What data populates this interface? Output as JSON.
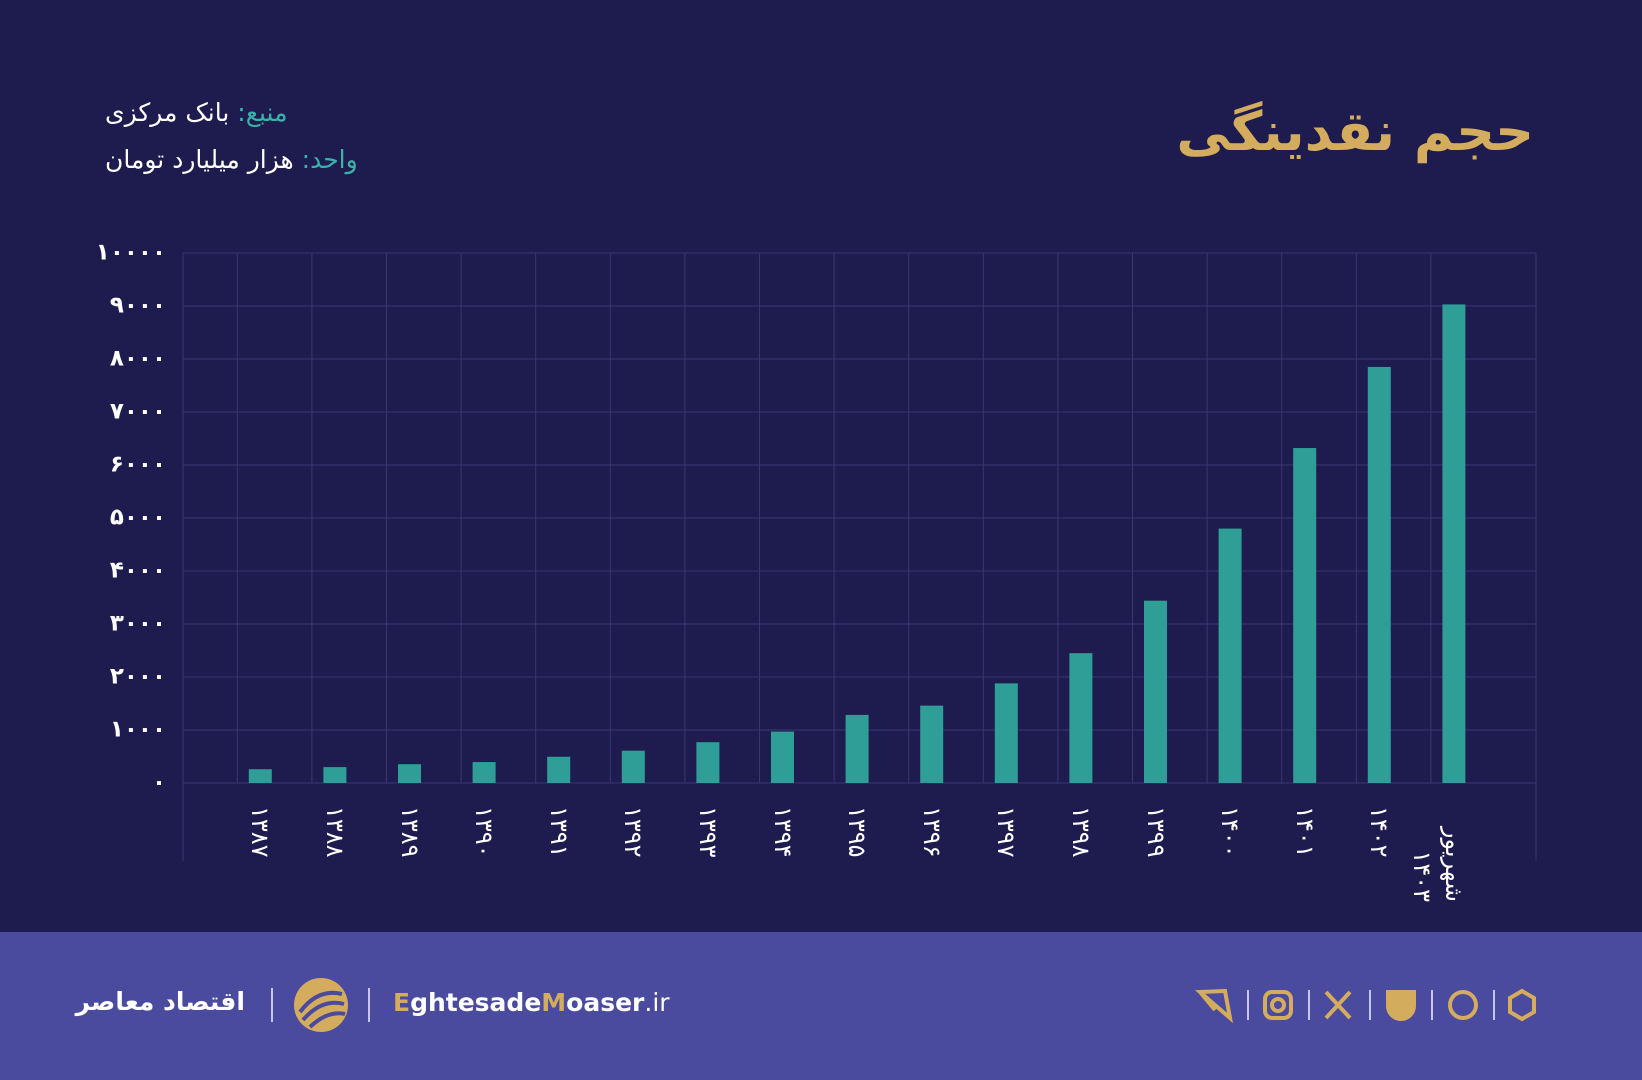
{
  "header": {
    "title": "حجم نقدینگی",
    "source_label": "منبع:",
    "source": "بانک مرکزی",
    "unit_label": "واحد:",
    "unit": "هزار میلیارد تومان"
  },
  "chart_data": {
    "type": "bar",
    "categories": [
      "۱۳۸۷",
      "۱۳۸۸",
      "۱۳۸۹",
      "۱۳۹۰",
      "۱۳۹۱",
      "۱۳۹۲",
      "۱۳۹۳",
      "۱۳۹۴",
      "۱۳۹۵",
      "۱۳۹۶",
      "۱۳۹۷",
      "۱۳۹۸",
      "۱۳۹۹",
      "۱۴۰۰",
      "۱۴۰۱",
      "۱۴۰۲",
      "شهریور ۱۴۰۳"
    ],
    "values": [
      260,
      300,
      355,
      395,
      495,
      610,
      770,
      970,
      1285,
      1460,
      1880,
      2450,
      3440,
      4800,
      6320,
      7850,
      9030
    ],
    "color": "#2e9e96",
    "ylim": [
      0,
      10000
    ],
    "yticks": [
      {
        "value": 0,
        "label": "۰"
      },
      {
        "value": 1000,
        "label": "۱۰۰۰"
      },
      {
        "value": 2000,
        "label": "۲۰۰۰"
      },
      {
        "value": 3000,
        "label": "۳۰۰۰"
      },
      {
        "value": 4000,
        "label": "۴۰۰۰"
      },
      {
        "value": 5000,
        "label": "۵۰۰۰"
      },
      {
        "value": 6000,
        "label": "۶۰۰۰"
      },
      {
        "value": 7000,
        "label": "۷۰۰۰"
      },
      {
        "value": 8000,
        "label": "۸۰۰۰"
      },
      {
        "value": 9000,
        "label": "۹۰۰۰"
      },
      {
        "value": 10000,
        "label": "۱۰۰۰۰"
      }
    ],
    "grid": true
  },
  "footer": {
    "brand": "اقتصاد معاصر",
    "site_parts": [
      "E",
      "ghtesade",
      "M",
      "oaser",
      ".ir"
    ]
  }
}
